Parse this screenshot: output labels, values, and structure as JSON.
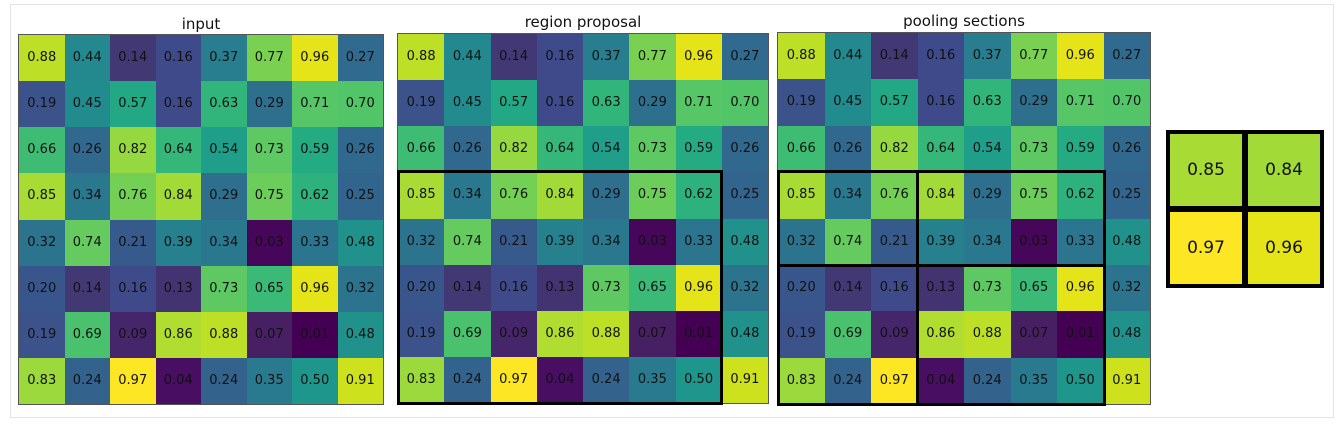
{
  "panels": [
    {
      "title": "input"
    },
    {
      "title": "region proposal"
    },
    {
      "title": "pooling sections"
    }
  ],
  "matrix": [
    [
      "0.88",
      "0.44",
      "0.14",
      "0.16",
      "0.37",
      "0.77",
      "0.96",
      "0.27"
    ],
    [
      "0.19",
      "0.45",
      "0.57",
      "0.16",
      "0.63",
      "0.29",
      "0.71",
      "0.70"
    ],
    [
      "0.66",
      "0.26",
      "0.82",
      "0.64",
      "0.54",
      "0.73",
      "0.59",
      "0.26"
    ],
    [
      "0.85",
      "0.34",
      "0.76",
      "0.84",
      "0.29",
      "0.75",
      "0.62",
      "0.25"
    ],
    [
      "0.32",
      "0.74",
      "0.21",
      "0.39",
      "0.34",
      "0.03",
      "0.33",
      "0.48"
    ],
    [
      "0.20",
      "0.14",
      "0.16",
      "0.13",
      "0.73",
      "0.65",
      "0.96",
      "0.32"
    ],
    [
      "0.19",
      "0.69",
      "0.09",
      "0.86",
      "0.88",
      "0.07",
      "0.01",
      "0.48"
    ],
    [
      "0.83",
      "0.24",
      "0.97",
      "0.04",
      "0.24",
      "0.35",
      "0.50",
      "0.91"
    ]
  ],
  "output": [
    "0.85",
    "0.84",
    "0.97",
    "0.96"
  ],
  "colors": {
    "0.01": "#440154",
    "0.03": "#46075a",
    "0.04": "#470e61",
    "0.07": "#472063",
    "0.09": "#46266b",
    "0.13": "#433371",
    "0.14": "#423974",
    "0.16": "#3e4a89",
    "0.19": "#3b528b",
    "0.20": "#39568c",
    "0.21": "#375a8c",
    "0.24": "#33628d",
    "0.25": "#32658e",
    "0.26": "#31688e",
    "0.27": "#306a8e",
    "0.29": "#2e6f8e",
    "0.32": "#2c738e",
    "0.33": "#2b758e",
    "0.34": "#2a788e",
    "0.35": "#297a8e",
    "0.37": "#287d8e",
    "0.39": "#27808e",
    "0.44": "#23898e",
    "0.45": "#228b8d",
    "0.48": "#21918c",
    "0.50": "#1f968b",
    "0.54": "#1f9e89",
    "0.57": "#22a884",
    "0.59": "#25ab82",
    "0.62": "#2db27d",
    "0.63": "#31b57b",
    "0.64": "#35b779",
    "0.65": "#3aba76",
    "0.66": "#3fbc73",
    "0.69": "#4ac16d",
    "0.70": "#52c569",
    "0.71": "#56c667",
    "0.73": "#5ec962",
    "0.74": "#65cb5e",
    "0.75": "#6ccd5a",
    "0.76": "#74d055",
    "0.77": "#7ad151",
    "0.82": "#95d840",
    "0.83": "#9bd93c",
    "0.84": "#a2da37",
    "0.85": "#a8db34",
    "0.86": "#b0dd2f",
    "0.88": "#bddf26",
    "0.91": "#cde11d",
    "0.96": "#e5e419",
    "0.97": "#fde725"
  }
}
